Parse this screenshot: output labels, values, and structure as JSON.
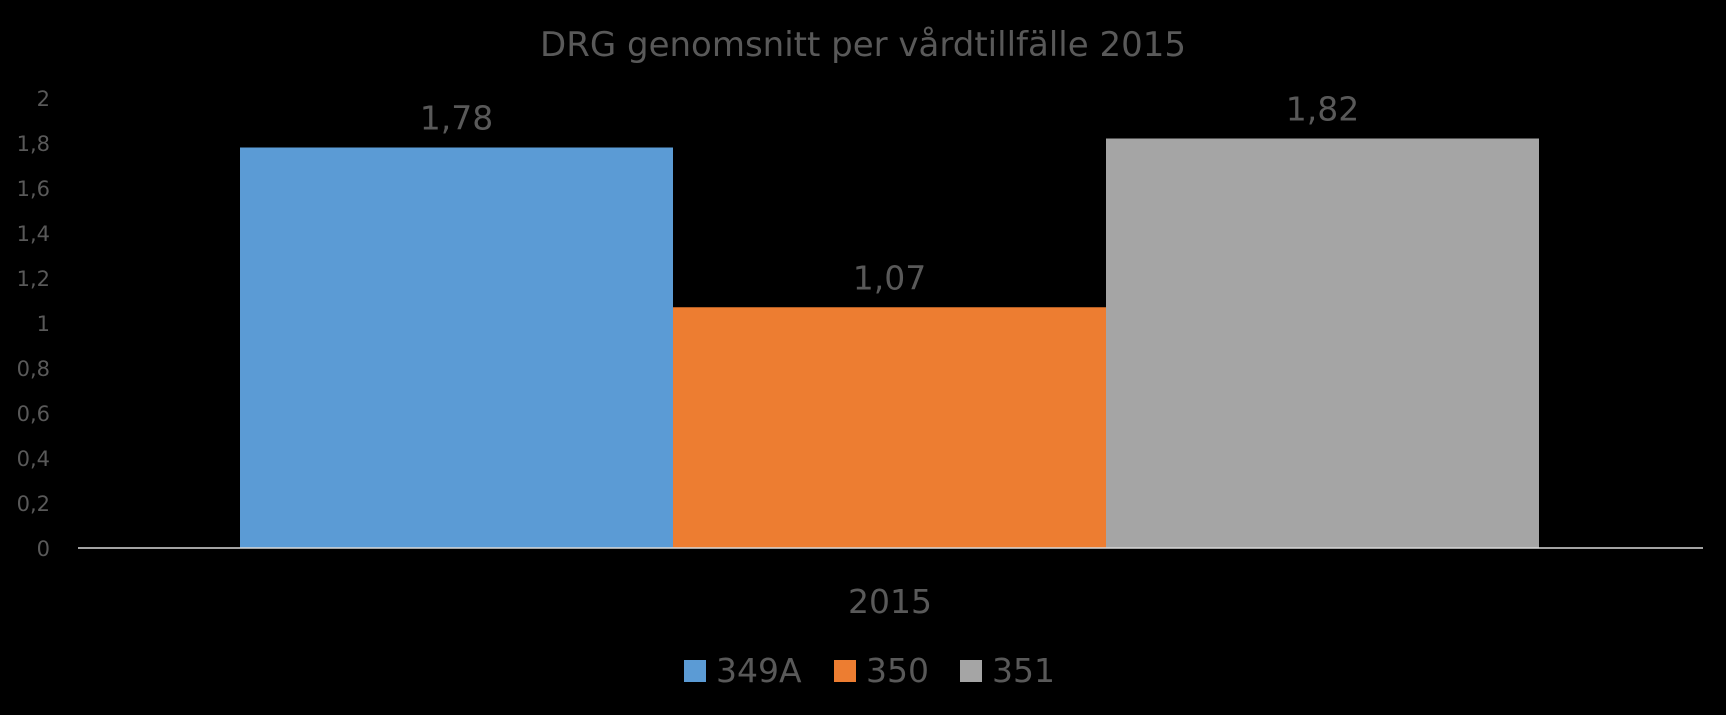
{
  "colors": {
    "background": "#000000",
    "text": "#595959",
    "axis": "#d9d9d9",
    "series_349A": "#5b9bd5",
    "series_350": "#ed7d31",
    "series_351": "#a5a5a5"
  },
  "chart_data": {
    "type": "bar",
    "title": "DRG genomsnitt per vårdtillfälle 2015",
    "categories": [
      "2015"
    ],
    "series": [
      {
        "name": "349A",
        "values": [
          1.78
        ],
        "label": "1,78",
        "color": "#5b9bd5"
      },
      {
        "name": "350",
        "values": [
          1.07
        ],
        "label": "1,07",
        "color": "#ed7d31"
      },
      {
        "name": "351",
        "values": [
          1.82
        ],
        "label": "1,82",
        "color": "#a5a5a5"
      }
    ],
    "ylim": [
      0,
      2
    ],
    "yticks": [
      0,
      0.2,
      0.4,
      0.6,
      0.8,
      1,
      1.2,
      1.4,
      1.6,
      1.8,
      2
    ],
    "ytick_labels": [
      "0",
      "0,2",
      "0,4",
      "0,6",
      "0,8",
      "1",
      "1,2",
      "1,4",
      "1,6",
      "1,8",
      "2"
    ],
    "grid": false,
    "legend_position": "bottom",
    "xlabel": "",
    "ylabel": ""
  }
}
